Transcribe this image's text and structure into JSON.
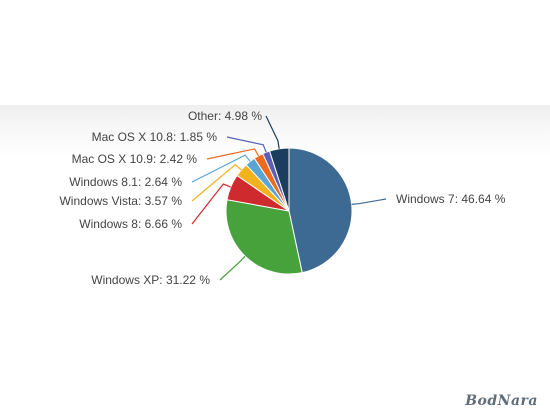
{
  "chart_data": {
    "type": "pie",
    "title": "",
    "slices": [
      {
        "name": "Windows 7",
        "value": 46.64,
        "label": "Windows 7: 46.64 %",
        "color": "#3d6a92"
      },
      {
        "name": "Windows XP",
        "value": 31.22,
        "label": "Windows XP: 31.22 %",
        "color": "#48a23c"
      },
      {
        "name": "Windows 8",
        "value": 6.66,
        "label": "Windows 8: 6.66 %",
        "color": "#cf2a2d"
      },
      {
        "name": "Windows Vista",
        "value": 3.57,
        "label": "Windows Vista: 3.57 %",
        "color": "#f2b21e"
      },
      {
        "name": "Windows 8.1",
        "value": 2.64,
        "label": "Windows 8.1: 2.64 %",
        "color": "#5aa5d4"
      },
      {
        "name": "Mac OS X 10.9",
        "value": 2.42,
        "label": "Mac OS X 10.9: 2.42 %",
        "color": "#ee6a1f"
      },
      {
        "name": "Mac OS X 10.8",
        "value": 1.85,
        "label": "Mac OS X 10.8: 1.85 %",
        "color": "#5b5fb6"
      },
      {
        "name": "Other",
        "value": 4.98,
        "label": "Other: 4.98 %",
        "color": "#1b3d5e"
      }
    ]
  },
  "watermark": "BodNara"
}
